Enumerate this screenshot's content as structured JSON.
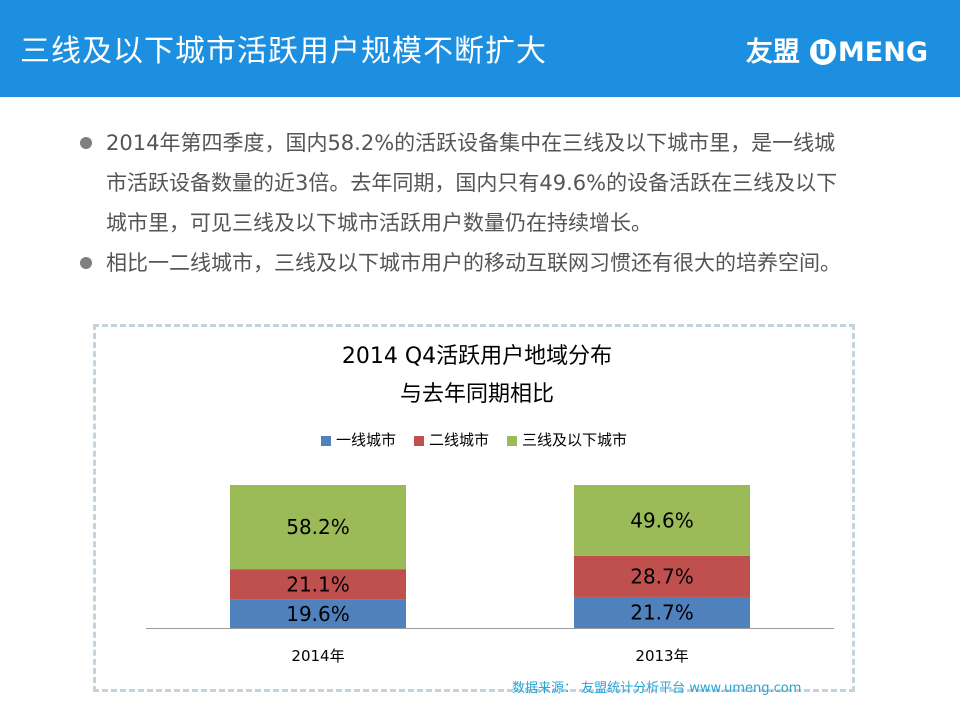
{
  "header": {
    "title": "三线及以下城市活跃用户规模不断扩大",
    "brand_cn": "友盟",
    "brand_u": "U",
    "brand_en": "MENG"
  },
  "bullets": [
    "2014年第四季度，国内58.2%的活跃设备集中在三线及以下城市里，是一线城市活跃设备数量的近3倍。去年同期，国内只有49.6%的设备活跃在三线及以下城市里，可见三线及以下城市活跃用户数量仍在持续增长。",
    "相比一二线城市，三线及以下城市用户的移动互联网习惯还有很大的培养空间。"
  ],
  "chart_data": {
    "type": "bar",
    "stacked": true,
    "normalized_percent": true,
    "title": "2014 Q4活跃用户地域分布",
    "subtitle": "与去年同期相比",
    "categories": [
      "2014年",
      "2013年"
    ],
    "series": [
      {
        "name": "一线城市",
        "values": [
          19.6,
          21.7
        ],
        "labels": [
          "19.6%",
          "21.7%"
        ],
        "color": "#4f81bd"
      },
      {
        "name": "二线城市",
        "values": [
          21.1,
          28.7
        ],
        "labels": [
          "21.1%",
          "28.7%"
        ],
        "color": "#c0504d"
      },
      {
        "name": "三线及以下城市",
        "values": [
          58.2,
          49.6
        ],
        "labels": [
          "58.2%",
          "49.6%"
        ],
        "color": "#9bbb59"
      }
    ],
    "legend_position": "top"
  },
  "source": "数据来源： 友盟统计分析平台 www.umeng.com"
}
